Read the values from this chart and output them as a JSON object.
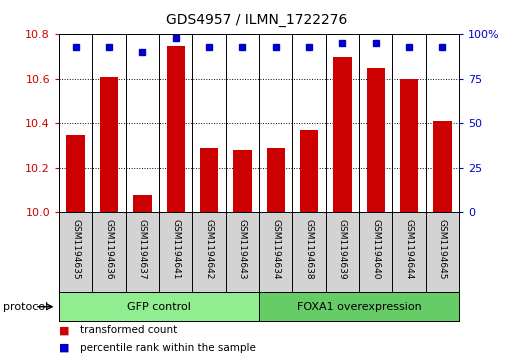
{
  "title": "GDS4957 / ILMN_1722276",
  "samples": [
    "GSM1194635",
    "GSM1194636",
    "GSM1194637",
    "GSM1194641",
    "GSM1194642",
    "GSM1194643",
    "GSM1194634",
    "GSM1194638",
    "GSM1194639",
    "GSM1194640",
    "GSM1194644",
    "GSM1194645"
  ],
  "red_values": [
    10.35,
    10.61,
    10.08,
    10.75,
    10.29,
    10.28,
    10.29,
    10.37,
    10.7,
    10.65,
    10.6,
    10.41
  ],
  "blue_values": [
    93,
    93,
    90,
    98,
    93,
    93,
    93,
    93,
    95,
    95,
    93,
    93
  ],
  "ylim_left": [
    10.0,
    10.8
  ],
  "ylim_right": [
    0,
    100
  ],
  "yticks_left": [
    10.0,
    10.2,
    10.4,
    10.6,
    10.8
  ],
  "yticks_right": [
    0,
    25,
    50,
    75,
    100
  ],
  "ytick_labels_right": [
    "0",
    "25",
    "50",
    "75",
    "100%"
  ],
  "bar_color": "#CC0000",
  "dot_color": "#0000CC",
  "bar_width": 0.55,
  "grid_color": "#000000",
  "background_color": "#ffffff",
  "tick_label_color_left": "#CC0000",
  "tick_label_color_right": "#0000CC",
  "sample_bg_color": "#D3D3D3",
  "gfp_color": "#90EE90",
  "foxa1_color": "#66CC66",
  "legend_items": [
    {
      "color": "#CC0000",
      "label": "transformed count"
    },
    {
      "color": "#0000CC",
      "label": "percentile rank within the sample"
    }
  ]
}
